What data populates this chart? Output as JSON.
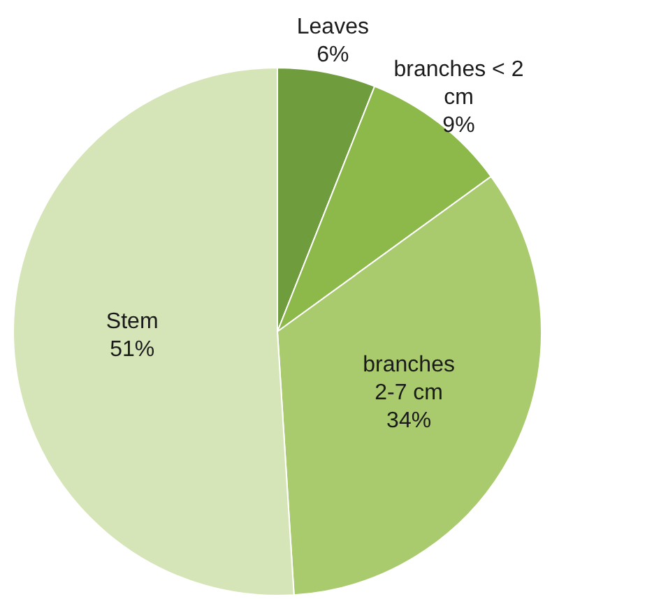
{
  "chart_data": {
    "type": "pie",
    "categories": [
      "Leaves",
      "branches < 2 cm",
      "branches 2-7 cm",
      "Stem"
    ],
    "values": [
      6,
      9,
      34,
      51
    ],
    "colors": [
      "#6f9c3c",
      "#8cb94a",
      "#a9cb6e",
      "#d6e5b8"
    ],
    "value_labels": [
      "6%",
      "9%",
      "34%",
      "51%"
    ],
    "legend": false
  }
}
